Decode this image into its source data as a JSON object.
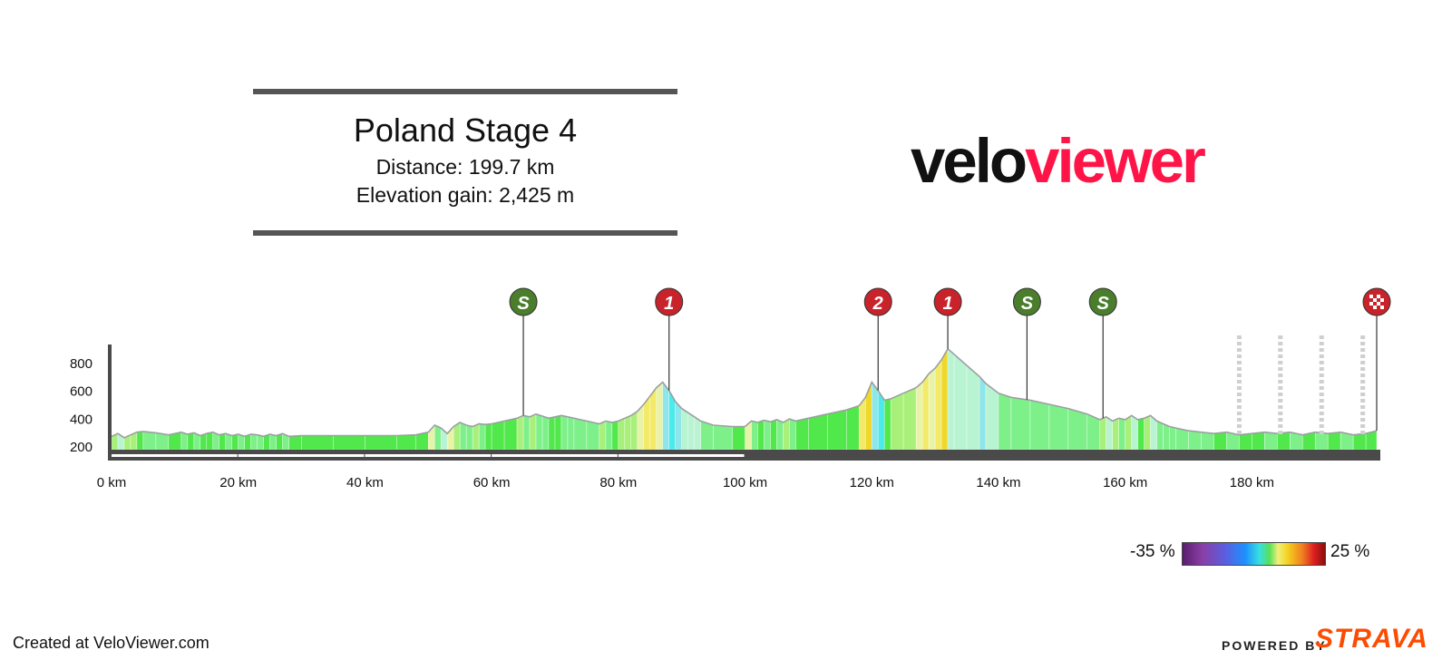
{
  "header": {
    "title": "Poland Stage 4",
    "distance": "Distance: 199.7 km",
    "elevation_gain": "Elevation gain: 2,425 m"
  },
  "logo": {
    "part1": "velo",
    "part2": "viewer"
  },
  "legend": {
    "min_label": "-35 %",
    "max_label": "25 %"
  },
  "footer": {
    "credit": "Created at VeloViewer.com",
    "powered_by": "POWERED BY",
    "brand": "STRAVA"
  },
  "colors": {
    "brand_red": "#ff1447",
    "strava_orange": "#fc4c02",
    "sprint_green": "#4a7d2c",
    "climb_red": "#c8222a",
    "axis_dark": "#4a4a4a"
  },
  "chart_data": {
    "type": "area",
    "xlabel": "",
    "ylabel": "",
    "xlim": [
      0,
      199.7
    ],
    "ylim": [
      200,
      900
    ],
    "x_ticks": [
      0,
      20,
      40,
      60,
      80,
      100,
      120,
      140,
      160,
      180
    ],
    "x_tick_labels": [
      "0 km",
      "20 km",
      "40 km",
      "60 km",
      "80 km",
      "100 km",
      "120 km",
      "140 km",
      "160 km",
      "180 km"
    ],
    "y_ticks": [
      200,
      400,
      600,
      800
    ],
    "y_tick_labels": [
      "200",
      "400",
      "600",
      "800"
    ],
    "profile": {
      "x": [
        0,
        1,
        2,
        3,
        4,
        5,
        7,
        9,
        11,
        12,
        13,
        14,
        15,
        16,
        17,
        18,
        19,
        20,
        21,
        22,
        23,
        24,
        25,
        26,
        27,
        28,
        30,
        35,
        40,
        45,
        48,
        50,
        51,
        52,
        53,
        54,
        55,
        56,
        57,
        58,
        59,
        60,
        62,
        64,
        65,
        66,
        67,
        68,
        69,
        70,
        71,
        72,
        73,
        75,
        77,
        78,
        79,
        80,
        81,
        82,
        83,
        84,
        85,
        86,
        87,
        88,
        89,
        90,
        91,
        92,
        93,
        95,
        98,
        100,
        101,
        102,
        103,
        104,
        105,
        106,
        107,
        108,
        110,
        113,
        116,
        118,
        119,
        120,
        121,
        122,
        123,
        125,
        127,
        128,
        129,
        130,
        131,
        132,
        133,
        135,
        137,
        138,
        140,
        142,
        145,
        148,
        151,
        154,
        156,
        157,
        158,
        159,
        160,
        161,
        162,
        163,
        164,
        165,
        166,
        167,
        168,
        170,
        172,
        174,
        176,
        178,
        180,
        182,
        184,
        186,
        188,
        190,
        192,
        194,
        196,
        198,
        199.7
      ],
      "y": [
        270,
        290,
        260,
        280,
        300,
        305,
        295,
        280,
        300,
        285,
        295,
        275,
        290,
        300,
        280,
        290,
        275,
        285,
        270,
        285,
        280,
        270,
        285,
        275,
        290,
        270,
        275,
        275,
        275,
        275,
        280,
        300,
        350,
        330,
        290,
        340,
        370,
        350,
        340,
        360,
        355,
        360,
        380,
        400,
        420,
        410,
        430,
        415,
        400,
        410,
        420,
        410,
        400,
        380,
        360,
        380,
        370,
        380,
        400,
        420,
        450,
        500,
        560,
        620,
        660,
        600,
        520,
        470,
        440,
        410,
        380,
        350,
        340,
        340,
        380,
        370,
        385,
        375,
        390,
        370,
        395,
        380,
        400,
        430,
        460,
        490,
        550,
        660,
        600,
        530,
        540,
        580,
        620,
        660,
        720,
        760,
        820,
        900,
        860,
        780,
        700,
        650,
        580,
        550,
        530,
        500,
        470,
        430,
        390,
        410,
        380,
        400,
        390,
        420,
        390,
        400,
        420,
        380,
        360,
        340,
        330,
        310,
        300,
        290,
        300,
        280,
        290,
        300,
        290,
        300,
        280,
        300,
        290,
        300,
        280,
        290,
        310
      ]
    },
    "markers": [
      {
        "type": "sprint",
        "label": "S",
        "x": 65
      },
      {
        "type": "climb",
        "label": "1",
        "x": 88
      },
      {
        "type": "climb",
        "label": "2",
        "x": 121
      },
      {
        "type": "climb",
        "label": "1",
        "x": 132
      },
      {
        "type": "sprint",
        "label": "S",
        "x": 144.5
      },
      {
        "type": "sprint",
        "label": "S",
        "x": 156.5
      },
      {
        "type": "finish",
        "label": "",
        "x": 199.7
      }
    ],
    "laps": [
      178,
      184.5,
      191,
      197.5
    ],
    "gradient_scale": {
      "min": -35,
      "max": 25,
      "unit": "%"
    }
  }
}
